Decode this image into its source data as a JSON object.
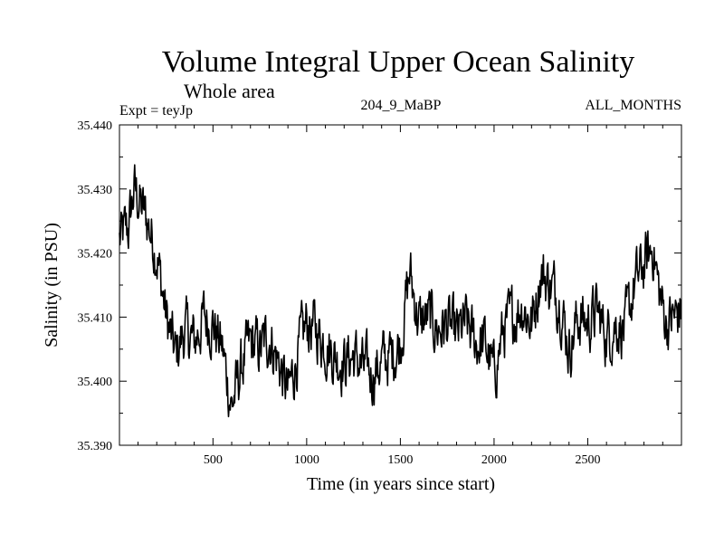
{
  "chart_data": {
    "type": "line",
    "title": "Volume Integral Upper Ocean Salinity",
    "subtitle": "Whole area",
    "header_left": "Expt = teyJp",
    "header_center": "204_9_MaBP",
    "header_right": "ALL_MONTHS",
    "xlabel": "Time (in years since start)",
    "ylabel": "Salinity (in PSU)",
    "xlim": [
      1,
      3000
    ],
    "ylim": [
      35.39,
      35.44
    ],
    "xticks": [
      500,
      1000,
      1500,
      2000,
      2500
    ],
    "yticks": [
      "35.390",
      "35.400",
      "35.410",
      "35.420",
      "35.430",
      "35.440"
    ],
    "series": [
      {
        "name": "salinity",
        "x": [
          1,
          50,
          80,
          120,
          150,
          200,
          250,
          300,
          350,
          400,
          450,
          500,
          550,
          600,
          650,
          700,
          750,
          800,
          850,
          900,
          950,
          1000,
          1050,
          1100,
          1150,
          1200,
          1250,
          1300,
          1350,
          1400,
          1450,
          1500,
          1550,
          1600,
          1650,
          1700,
          1750,
          1800,
          1850,
          1900,
          1950,
          2000,
          2050,
          2100,
          2150,
          2200,
          2250,
          2300,
          2350,
          2400,
          2450,
          2500,
          2550,
          2600,
          2650,
          2700,
          2750,
          2800,
          2850,
          2880,
          2920,
          2960,
          3000
        ],
        "values": [
          35.422,
          35.424,
          35.43,
          35.427,
          35.425,
          35.42,
          35.41,
          35.404,
          35.408,
          35.406,
          35.41,
          35.409,
          35.405,
          35.396,
          35.402,
          35.406,
          35.405,
          35.407,
          35.403,
          35.398,
          35.404,
          35.409,
          35.408,
          35.406,
          35.404,
          35.403,
          35.404,
          35.402,
          35.401,
          35.403,
          35.404,
          35.406,
          35.417,
          35.409,
          35.41,
          35.408,
          35.409,
          35.407,
          35.409,
          35.406,
          35.406,
          35.401,
          35.408,
          35.41,
          35.412,
          35.409,
          35.417,
          35.415,
          35.413,
          35.405,
          35.41,
          35.409,
          35.411,
          35.407,
          35.409,
          35.408,
          35.415,
          35.418,
          35.421,
          35.414,
          35.409,
          35.41,
          35.411
        ]
      }
    ]
  }
}
